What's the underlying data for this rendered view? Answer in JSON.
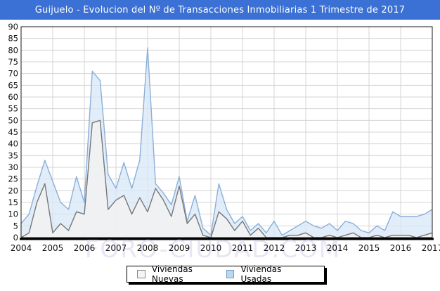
{
  "window": {
    "title": "Guijuelo - Evolucion del Nº de Transacciones Inmobiliarias 1 Trimestre de 2017"
  },
  "watermark": "FORO-CIUDAD.COM",
  "colors": {
    "title_bar": "#3B70D4",
    "title_text": "#FFFFFF",
    "plot_bg": "#FFFFFF",
    "plot_border": "#1A1A1A",
    "grid": "#D4D4D4",
    "axis_text": "#111111",
    "watermark": "#D9D9F0"
  },
  "chart_data": {
    "type": "area",
    "title": "Guijuelo - Evolucion del Nº de Transacciones Inmobiliarias 1 Trimestre de 2017",
    "x_unit": "quarter",
    "x_range": "2004Q1 - 2017Q1",
    "x_tick_labels": [
      "2004",
      "2005",
      "2006",
      "2007",
      "2008",
      "2009",
      "2010",
      "2011",
      "2012",
      "2013",
      "2014",
      "2015",
      "2016",
      "2017"
    ],
    "y_ticks": [
      0,
      5,
      10,
      15,
      20,
      25,
      30,
      35,
      40,
      45,
      50,
      55,
      60,
      65,
      70,
      75,
      80,
      85,
      90
    ],
    "ylim": [
      0,
      90
    ],
    "grid": true,
    "legend_position": "bottom",
    "series": [
      {
        "name": "Viviendas Nuevas",
        "fill": "#F1F1F1",
        "fill_opacity": 0.93,
        "stroke": "#777777",
        "swatch_fill": "#F5F5F5",
        "swatch_border": "#888888",
        "values": [
          0,
          2,
          15,
          23,
          2,
          6,
          3,
          11,
          10,
          49,
          50,
          12,
          16,
          18,
          10,
          17,
          11,
          21,
          16,
          9,
          22,
          6,
          10,
          1,
          0,
          11,
          8,
          3,
          7,
          1,
          4,
          0,
          0,
          0,
          1,
          1,
          2,
          0,
          0,
          1,
          0,
          1,
          2,
          0,
          0,
          1,
          0,
          1,
          1,
          1,
          0,
          1,
          2
        ]
      },
      {
        "name": "Viviendas Usadas",
        "fill": "#D8E7F8",
        "fill_opacity": 0.75,
        "stroke": "#8AAFD8",
        "swatch_fill": "#BDD7F0",
        "swatch_border": "#7A9CC4",
        "values": [
          6,
          10,
          22,
          33,
          24,
          15,
          12,
          26,
          15,
          71,
          67,
          27,
          21,
          32,
          21,
          33,
          81,
          23,
          19,
          14,
          26,
          7,
          18,
          4,
          1,
          23,
          12,
          6,
          9,
          3,
          6,
          2,
          7,
          1,
          3,
          5,
          7,
          5,
          4,
          6,
          3,
          7,
          6,
          3,
          2,
          5,
          3,
          11,
          9,
          9,
          9,
          10,
          12
        ]
      }
    ]
  }
}
